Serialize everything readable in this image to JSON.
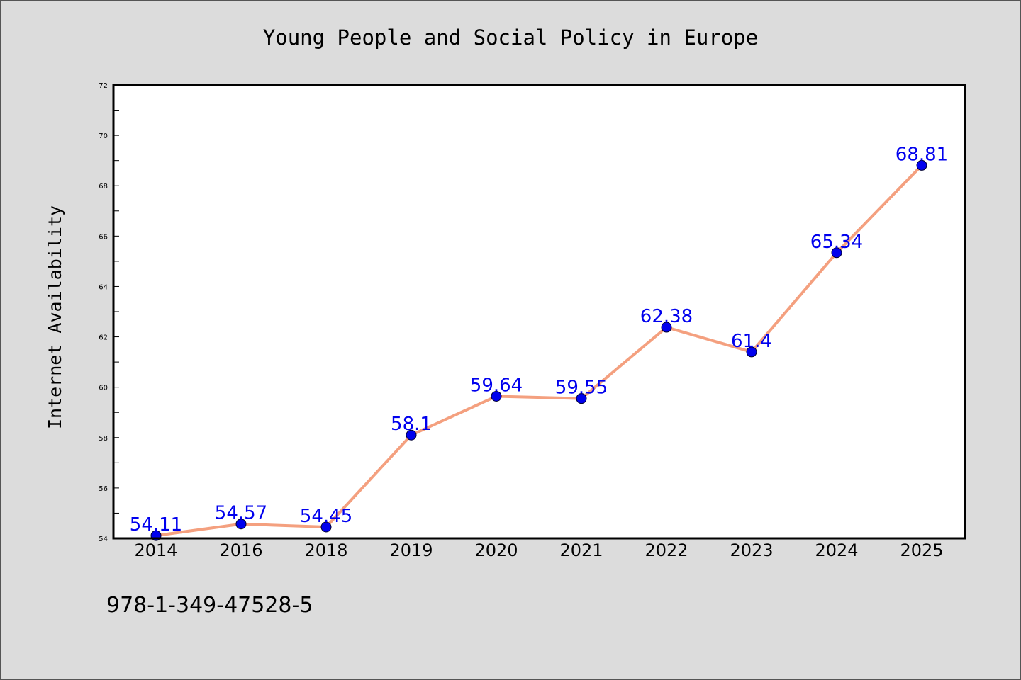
{
  "chart_data": {
    "type": "line",
    "title": "Young People and Social Policy in Europe",
    "xlabel": "",
    "ylabel": "Internet Availability",
    "categories": [
      "2014",
      "2016",
      "2018",
      "2019",
      "2020",
      "2021",
      "2022",
      "2023",
      "2024",
      "2025"
    ],
    "series": [
      {
        "values": [
          54.11,
          54.57,
          54.45,
          58.1,
          59.64,
          59.55,
          62.38,
          61.4,
          65.34,
          68.81
        ],
        "data_labels": [
          "54.11",
          "54.57",
          "54.45",
          "58.1",
          "59.64",
          "59.55",
          "62.38",
          "61.4",
          "65.34",
          "68.81"
        ]
      }
    ],
    "ylim": [
      54,
      72
    ],
    "yticks": [
      "54",
      "56",
      "58",
      "60",
      "62",
      "64",
      "66",
      "68",
      "70",
      "72"
    ],
    "grid": false,
    "line_color": "#f4a07f",
    "marker_color": "#0000ee",
    "label_color": "#0000ee"
  },
  "annotation": "978-1-349-47528-5"
}
